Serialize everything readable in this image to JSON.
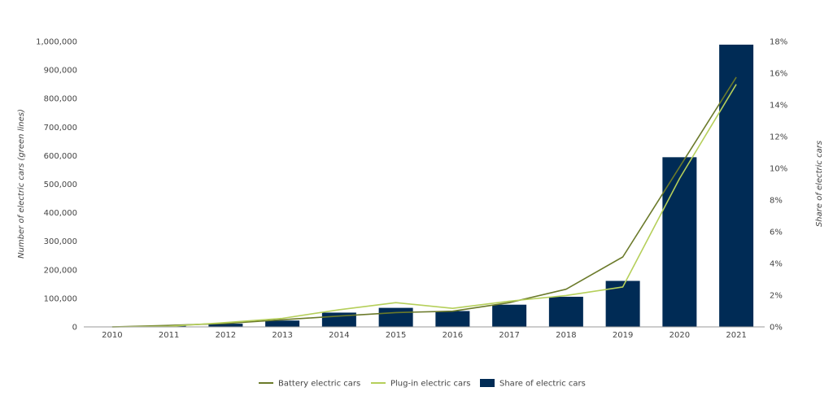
{
  "chart_data": {
    "type": "bar",
    "categories": [
      "2010",
      "2011",
      "2012",
      "2013",
      "2014",
      "2015",
      "2016",
      "2017",
      "2018",
      "2019",
      "2020",
      "2021"
    ],
    "ylabel": "Number of electric cars (green lines)",
    "y2label": "Share of electric cars",
    "ylim": [
      0,
      1000000
    ],
    "y2lim": [
      0,
      18
    ],
    "y_ticks": [
      "0",
      "100,000",
      "200,000",
      "300,000",
      "400,000",
      "500,000",
      "600,000",
      "700,000",
      "800,000",
      "900,000",
      "1,000,000"
    ],
    "y2_ticks": [
      "0%",
      "2%",
      "4%",
      "6%",
      "8%",
      "10%",
      "12%",
      "14%",
      "16%",
      "18%"
    ],
    "grid": false,
    "legend_position": "bottom",
    "series": [
      {
        "name": "Battery electric cars",
        "type": "line",
        "axis": "left",
        "color": "#6b7a2a",
        "values": [
          0,
          5000,
          12000,
          25000,
          38000,
          50000,
          55000,
          85000,
          132000,
          245000,
          560000,
          875000
        ]
      },
      {
        "name": "Plug-in electric cars",
        "type": "line",
        "axis": "left",
        "color": "#b5cf5a",
        "values": [
          0,
          2000,
          15000,
          30000,
          60000,
          85000,
          65000,
          90000,
          110000,
          140000,
          520000,
          850000
        ]
      },
      {
        "name": "Share of electric cars",
        "type": "bar",
        "axis": "right",
        "color": "#002b55",
        "values": [
          0,
          0.1,
          0.2,
          0.4,
          0.9,
          1.2,
          1.0,
          1.4,
          1.9,
          2.9,
          10.7,
          17.8
        ]
      }
    ]
  }
}
